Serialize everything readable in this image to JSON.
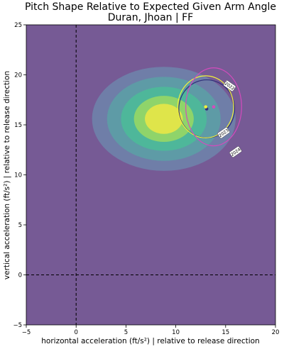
{
  "chart_data": {
    "type": "scatter",
    "title": "Pitch Shape Relative to Expected Given Arm Angle",
    "subtitle": "Duran, Jhoan | FF",
    "xlabel": "horizontal acceleration (ft/s²) | relative to release direction",
    "ylabel": "vertical acceleration (ft/s²) | relative to release direction",
    "xlim": [
      -5,
      20
    ],
    "ylim": [
      -5,
      25
    ],
    "xticks": [
      "−5",
      "0",
      "5",
      "10",
      "15",
      "20"
    ],
    "yticks": [
      "−5",
      "0",
      "5",
      "10",
      "15",
      "20",
      "25"
    ],
    "xtick_values": [
      -5,
      0,
      5,
      10,
      15,
      20
    ],
    "ytick_values": [
      -5,
      0,
      5,
      10,
      15,
      20,
      25
    ],
    "grid": false,
    "background_color": "#765a95",
    "reference_lines": [
      {
        "axis": "x",
        "value": 0,
        "style": "dashed"
      },
      {
        "axis": "y",
        "value": 0,
        "style": "dashed"
      }
    ],
    "expected_density": {
      "center": [
        8.8,
        15.6
      ],
      "contour_levels": [
        {
          "rx": 7.2,
          "ry": 5.2,
          "color": "#6f7ea8"
        },
        {
          "rx": 5.7,
          "ry": 4.2,
          "color": "#5e9ba6"
        },
        {
          "rx": 4.3,
          "ry": 3.2,
          "color": "#4eb79a"
        },
        {
          "rx": 3.0,
          "ry": 2.3,
          "color": "#8fd46a"
        },
        {
          "rx": 1.9,
          "ry": 1.5,
          "color": "#dfe54a"
        }
      ]
    },
    "series": [
      {
        "name": "2022",
        "point": [
          13.1,
          16.6
        ],
        "ellipse": {
          "rx": 2.8,
          "ry": 2.9
        },
        "color": "#2f2f7a",
        "label_at": [
          15.4,
          18.9
        ],
        "label_angle": 35
      },
      {
        "name": "2023",
        "point": [
          13.0,
          16.8
        ],
        "ellipse": {
          "rx": 2.8,
          "ry": 3.1
        },
        "color": "#f1f13a",
        "label_at": [
          14.8,
          14.2
        ],
        "label_angle": -35
      },
      {
        "name": "2024",
        "point": [
          13.8,
          16.8
        ],
        "ellipse": {
          "rx": 2.8,
          "ry": 3.9
        },
        "color": "#d44bbd",
        "label_at": [
          16.0,
          12.3
        ],
        "label_angle": -35
      }
    ]
  }
}
